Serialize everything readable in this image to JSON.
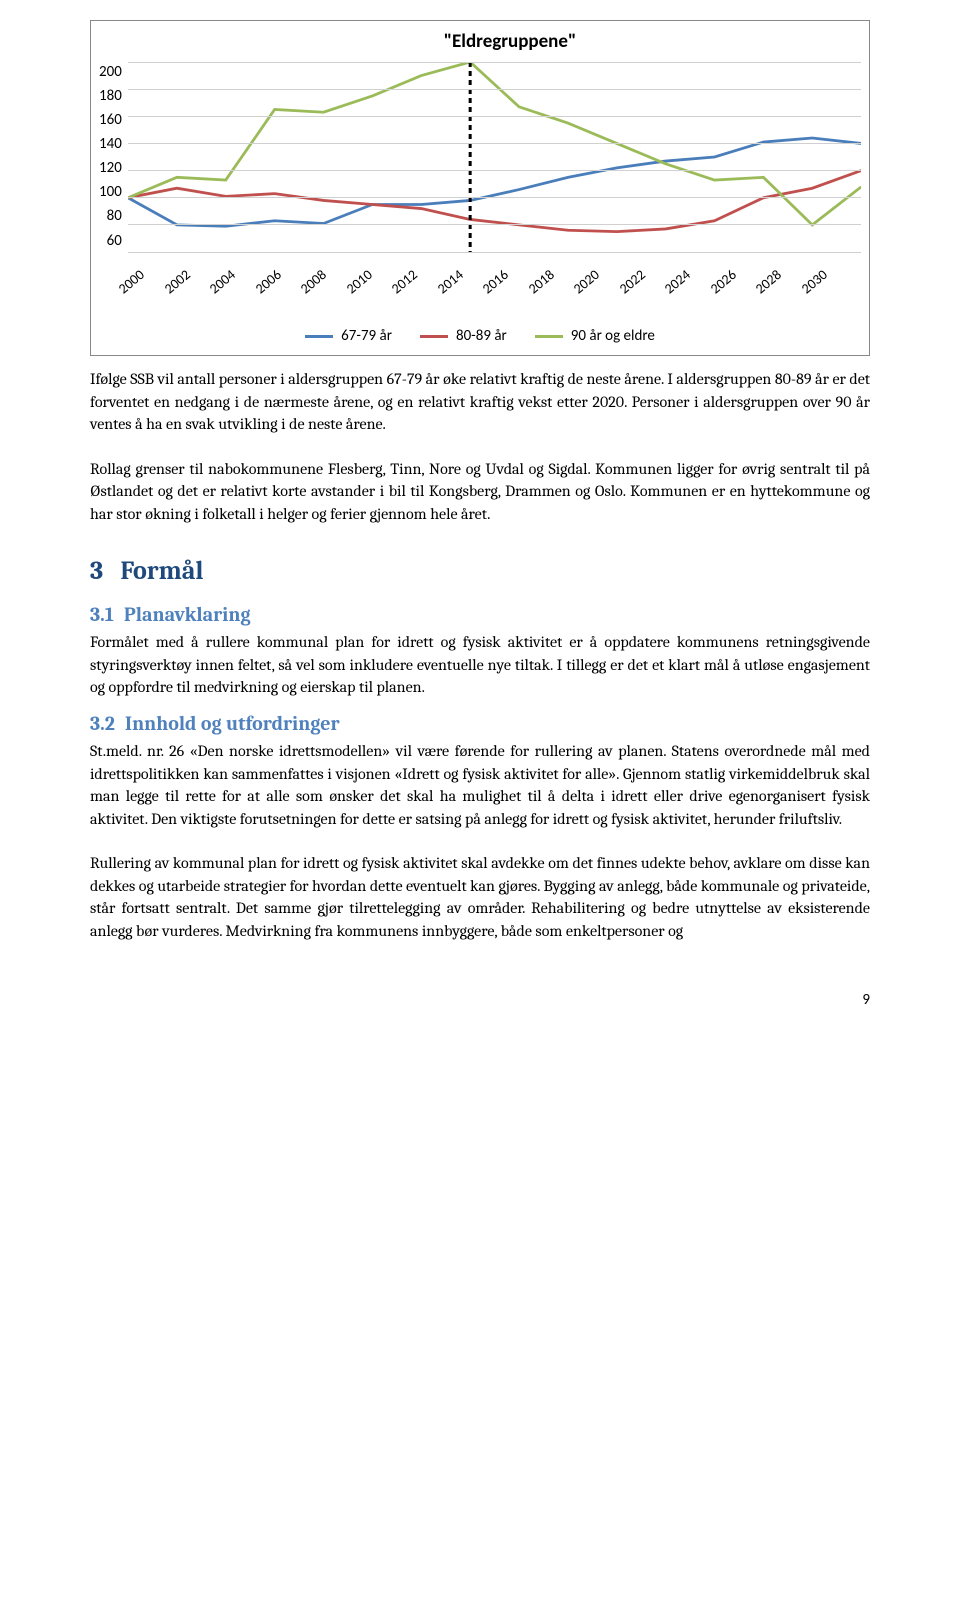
{
  "chart": {
    "type": "line",
    "title": "\"Eldregruppene\"",
    "title_fontsize": 19,
    "title_color": "#000000",
    "background_color": "#ffffff",
    "grid_color": "#d0d0d0",
    "ylim": [
      60,
      200
    ],
    "yticks": [
      200,
      180,
      160,
      140,
      120,
      100,
      80,
      60
    ],
    "xlabels": [
      "2000",
      "2002",
      "2004",
      "2006",
      "2008",
      "2010",
      "2012",
      "2014",
      "2016",
      "2018",
      "2020",
      "2022",
      "2024",
      "2026",
      "2028",
      "2030"
    ],
    "line_width": 2.8,
    "vertical_marker_x": 7,
    "vertical_marker_style": "dashed",
    "vertical_marker_color": "#000000",
    "series": [
      {
        "name": "67-79 år",
        "color": "#4a7ebb",
        "values": [
          100,
          80,
          79,
          83,
          81,
          95,
          95,
          98,
          106,
          115,
          122,
          127,
          130,
          141,
          144,
          140
        ]
      },
      {
        "name": "80-89 år",
        "color": "#c0504d",
        "values": [
          100,
          107,
          101,
          103,
          98,
          95,
          92,
          84,
          80,
          76,
          75,
          77,
          83,
          100,
          107,
          120
        ]
      },
      {
        "name": "90 år og eldre",
        "color": "#9bbb59",
        "values": [
          100,
          115,
          113,
          165,
          163,
          175,
          190,
          200,
          167,
          155,
          140,
          125,
          113,
          115,
          80,
          108
        ]
      }
    ]
  },
  "para1": "Ifølge SSB vil antall personer i aldersgruppen 67-79 år øke relativt kraftig de neste årene. I aldersgruppen 80-89 år er det forventet en nedgang i de nærmeste årene, og en relativt kraftig vekst etter 2020. Personer i aldersgruppen over 90 år ventes å ha en svak utvikling i de neste årene.",
  "para2": "Rollag grenser til nabokommunene Flesberg, Tinn, Nore og Uvdal og Sigdal. Kommunen ligger for øvrig sentralt til på Østlandet og det er relativt korte avstander i bil til Kongsberg, Drammen og Oslo. Kommunen er en hyttekommune og har stor økning i folketall i helger og ferier gjennom hele året.",
  "section3": {
    "num": "3",
    "title": "Formål"
  },
  "section31": {
    "num": "3.1",
    "title": "Planavklaring",
    "body": "Formålet med å rullere kommunal plan for idrett og fysisk aktivitet er å oppdatere kommunens retningsgivende styringsverktøy innen feltet, så vel som inkludere eventuelle nye tiltak. I tillegg er det et klart mål å utløse engasjement og oppfordre til medvirkning og eierskap til planen."
  },
  "section32": {
    "num": "3.2",
    "title": "Innhold og utfordringer",
    "p1": "St.meld. nr. 26 «Den norske idrettsmodellen» vil være førende for rullering av planen. Statens overordnede mål med idrettspolitikken kan sammenfattes i visjonen «Idrett og fysisk aktivitet for alle». Gjennom statlig virkemiddelbruk skal man legge til rette for at alle som ønsker det skal ha mulighet til å delta i idrett eller drive egenorganisert fysisk aktivitet. Den viktigste forutsetningen for dette er satsing på anlegg for idrett og fysisk aktivitet, herunder friluftsliv.",
    "p2": "Rullering av kommunal plan for idrett og fysisk aktivitet skal avdekke om det finnes udekte behov, avklare om disse kan dekkes og utarbeide strategier for hvordan dette eventuelt kan gjøres. Bygging av anlegg, både kommunale og privateide, står fortsatt sentralt. Det samme gjør tilrettelegging av områder. Rehabilitering og bedre utnyttelse av eksisterende anlegg bør vurderes. Medvirkning fra kommunens innbyggere, både som enkeltpersoner og"
  },
  "page_number": "9"
}
